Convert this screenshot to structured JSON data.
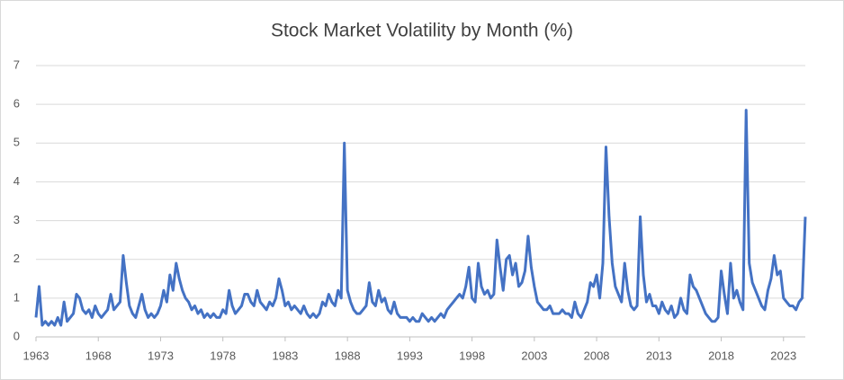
{
  "chart_data": {
    "type": "line",
    "title": "Stock Market Volatility by Month (%)",
    "x": [
      1963,
      1963.25,
      1963.5,
      1963.75,
      1964,
      1964.25,
      1964.5,
      1964.75,
      1965,
      1965.25,
      1965.5,
      1965.75,
      1966,
      1966.25,
      1966.5,
      1966.75,
      1967,
      1967.25,
      1967.5,
      1967.75,
      1968,
      1968.25,
      1968.5,
      1968.75,
      1969,
      1969.25,
      1969.5,
      1969.75,
      1970,
      1970.25,
      1970.5,
      1970.75,
      1971,
      1971.25,
      1971.5,
      1971.75,
      1972,
      1972.25,
      1972.5,
      1972.75,
      1973,
      1973.25,
      1973.5,
      1973.75,
      1974,
      1974.25,
      1974.5,
      1974.75,
      1975,
      1975.25,
      1975.5,
      1975.75,
      1976,
      1976.25,
      1976.5,
      1976.75,
      1977,
      1977.25,
      1977.5,
      1977.75,
      1978,
      1978.25,
      1978.5,
      1978.75,
      1979,
      1979.25,
      1979.5,
      1979.75,
      1980,
      1980.25,
      1980.5,
      1980.75,
      1981,
      1981.25,
      1981.5,
      1981.75,
      1982,
      1982.25,
      1982.5,
      1982.75,
      1983,
      1983.25,
      1983.5,
      1983.75,
      1984,
      1984.25,
      1984.5,
      1984.75,
      1985,
      1985.25,
      1985.5,
      1985.75,
      1986,
      1986.25,
      1986.5,
      1986.75,
      1987,
      1987.25,
      1987.5,
      1987.75,
      1988,
      1988.25,
      1988.5,
      1988.75,
      1989,
      1989.25,
      1989.5,
      1989.75,
      1990,
      1990.25,
      1990.5,
      1990.75,
      1991,
      1991.25,
      1991.5,
      1991.75,
      1992,
      1992.25,
      1992.5,
      1992.75,
      1993,
      1993.25,
      1993.5,
      1993.75,
      1994,
      1994.25,
      1994.5,
      1994.75,
      1995,
      1995.25,
      1995.5,
      1995.75,
      1996,
      1996.25,
      1996.5,
      1996.75,
      1997,
      1997.25,
      1997.5,
      1997.75,
      1998,
      1998.25,
      1998.5,
      1998.75,
      1999,
      1999.25,
      1999.5,
      1999.75,
      2000,
      2000.25,
      2000.5,
      2000.75,
      2001,
      2001.25,
      2001.5,
      2001.75,
      2002,
      2002.25,
      2002.5,
      2002.75,
      2003,
      2003.25,
      2003.5,
      2003.75,
      2004,
      2004.25,
      2004.5,
      2004.75,
      2005,
      2005.25,
      2005.5,
      2005.75,
      2006,
      2006.25,
      2006.5,
      2006.75,
      2007,
      2007.25,
      2007.5,
      2007.75,
      2008,
      2008.25,
      2008.5,
      2008.75,
      2009,
      2009.25,
      2009.5,
      2009.75,
      2010,
      2010.25,
      2010.5,
      2010.75,
      2011,
      2011.25,
      2011.5,
      2011.75,
      2012,
      2012.25,
      2012.5,
      2012.75,
      2013,
      2013.25,
      2013.5,
      2013.75,
      2014,
      2014.25,
      2014.5,
      2014.75,
      2015,
      2015.25,
      2015.5,
      2015.75,
      2016,
      2016.25,
      2016.5,
      2016.75,
      2017,
      2017.25,
      2017.5,
      2017.75,
      2018,
      2018.25,
      2018.5,
      2018.75,
      2019,
      2019.25,
      2019.5,
      2019.75,
      2020,
      2020.25,
      2020.5,
      2020.75,
      2021,
      2021.25,
      2021.5,
      2021.75,
      2022,
      2022.25,
      2022.5,
      2022.75,
      2023,
      2023.25,
      2023.5,
      2023.75,
      2024,
      2024.25,
      2024.5,
      2024.75
    ],
    "series": [
      {
        "color": "#4472c4",
        "values": [
          0.5,
          1.3,
          0.3,
          0.4,
          0.3,
          0.4,
          0.3,
          0.5,
          0.3,
          0.9,
          0.4,
          0.5,
          0.6,
          1.1,
          1.0,
          0.7,
          0.6,
          0.7,
          0.5,
          0.8,
          0.6,
          0.5,
          0.6,
          0.7,
          1.1,
          0.7,
          0.8,
          0.9,
          2.1,
          1.4,
          0.8,
          0.6,
          0.5,
          0.8,
          1.1,
          0.7,
          0.5,
          0.6,
          0.5,
          0.6,
          0.8,
          1.2,
          0.9,
          1.6,
          1.2,
          1.9,
          1.5,
          1.2,
          1.0,
          0.9,
          0.7,
          0.8,
          0.6,
          0.7,
          0.5,
          0.6,
          0.5,
          0.6,
          0.5,
          0.5,
          0.7,
          0.6,
          1.2,
          0.8,
          0.6,
          0.7,
          0.8,
          1.1,
          1.1,
          0.9,
          0.8,
          1.2,
          0.9,
          0.8,
          0.7,
          0.9,
          0.8,
          1.0,
          1.5,
          1.2,
          0.8,
          0.9,
          0.7,
          0.8,
          0.7,
          0.6,
          0.8,
          0.6,
          0.5,
          0.6,
          0.5,
          0.6,
          0.9,
          0.8,
          1.1,
          0.9,
          0.8,
          1.2,
          1.0,
          5.0,
          1.2,
          0.9,
          0.7,
          0.6,
          0.6,
          0.7,
          0.8,
          1.4,
          0.9,
          0.8,
          1.2,
          0.9,
          1.0,
          0.7,
          0.6,
          0.9,
          0.6,
          0.5,
          0.5,
          0.5,
          0.4,
          0.5,
          0.4,
          0.4,
          0.6,
          0.5,
          0.4,
          0.5,
          0.4,
          0.5,
          0.6,
          0.5,
          0.7,
          0.8,
          0.9,
          1.0,
          1.1,
          1.0,
          1.3,
          1.8,
          1.0,
          0.9,
          1.9,
          1.3,
          1.1,
          1.2,
          1.0,
          1.1,
          2.5,
          1.8,
          1.2,
          2.0,
          2.1,
          1.6,
          1.9,
          1.3,
          1.4,
          1.7,
          2.6,
          1.8,
          1.3,
          0.9,
          0.8,
          0.7,
          0.7,
          0.8,
          0.6,
          0.6,
          0.6,
          0.7,
          0.6,
          0.6,
          0.5,
          0.9,
          0.6,
          0.5,
          0.7,
          0.9,
          1.4,
          1.3,
          1.6,
          1.0,
          1.9,
          4.9,
          3.1,
          1.9,
          1.3,
          1.1,
          0.9,
          1.9,
          1.2,
          0.8,
          0.7,
          0.8,
          3.1,
          1.6,
          0.9,
          1.1,
          0.8,
          0.8,
          0.6,
          0.9,
          0.7,
          0.6,
          0.8,
          0.5,
          0.6,
          1.0,
          0.7,
          0.6,
          1.6,
          1.3,
          1.2,
          1.0,
          0.8,
          0.6,
          0.5,
          0.4,
          0.4,
          0.5,
          1.7,
          1.1,
          0.6,
          1.9,
          1.0,
          1.2,
          0.9,
          0.7,
          5.85,
          1.9,
          1.4,
          1.2,
          1.0,
          0.8,
          0.7,
          1.2,
          1.5,
          2.1,
          1.6,
          1.7,
          1.0,
          0.9,
          0.8,
          0.8,
          0.7,
          0.9,
          1.0,
          3.1
        ]
      }
    ],
    "xlim": [
      1963,
      2024.75
    ],
    "xticks": [
      1963,
      1968,
      1973,
      1978,
      1983,
      1988,
      1993,
      1998,
      2003,
      2008,
      2013,
      2018,
      2023
    ],
    "ylim": [
      0,
      7
    ],
    "yticks": [
      0,
      1,
      2,
      3,
      4,
      5,
      6,
      7
    ],
    "grid": true
  }
}
